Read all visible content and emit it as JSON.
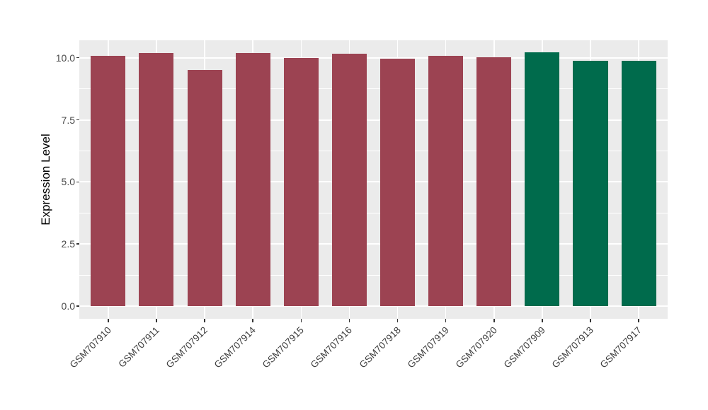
{
  "chart_data": {
    "type": "bar",
    "title": "",
    "xlabel": "",
    "ylabel": "Expression Level",
    "categories": [
      "GSM707910",
      "GSM707911",
      "GSM707912",
      "GSM707914",
      "GSM707915",
      "GSM707916",
      "GSM707918",
      "GSM707919",
      "GSM707920",
      "GSM707909",
      "GSM707913",
      "GSM707917"
    ],
    "values": [
      10.08,
      10.2,
      9.5,
      10.2,
      10.0,
      10.16,
      9.95,
      10.08,
      10.02,
      10.21,
      9.88,
      9.88
    ],
    "bar_colors": [
      "#9C4352",
      "#9C4352",
      "#9C4352",
      "#9C4352",
      "#9C4352",
      "#9C4352",
      "#9C4352",
      "#9C4352",
      "#9C4352",
      "#006B4C",
      "#006B4C",
      "#006B4C"
    ],
    "group_palette": {
      "maroon": "#9C4352",
      "green": "#006B4C"
    },
    "y_ticks": [
      0.0,
      2.5,
      5.0,
      7.5,
      10.0
    ],
    "y_tick_labels": [
      "0.0",
      "2.5",
      "5.0",
      "7.5",
      "10.0"
    ],
    "y_minor_gridlines": [
      1.25,
      3.75,
      6.25,
      8.75
    ],
    "ylim_display": [
      -0.512,
      10.702
    ],
    "grid": true,
    "legend_position": "none",
    "panel_background": "#EBEBEB",
    "gridline_color": "#FFFFFF",
    "x_tick_rotation_deg": 45
  }
}
